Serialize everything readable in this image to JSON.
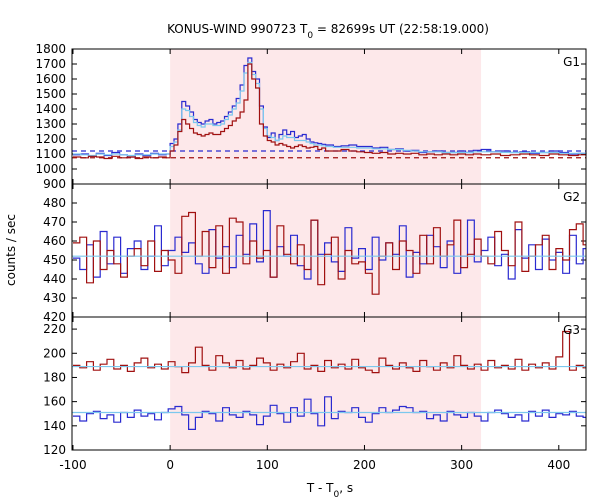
{
  "title": {
    "prefix": "KONUS-WIND 990723 T",
    "sub": "0",
    "suffix": " = 82699s UT (22:58:19.000)"
  },
  "ylabel": "counts / sec",
  "xlabel": {
    "prefix": "T - T",
    "sub": "0",
    "suffix": ", s"
  },
  "colors": {
    "red": "#a01010",
    "blue": "#2a2ad0",
    "light_blue": "#7cc8ee",
    "shade": "#fde8ea"
  },
  "chart_data": {
    "type": "line",
    "xlim": [
      -101,
      428
    ],
    "xticks": [
      -100,
      0,
      100,
      200,
      300,
      400
    ],
    "shaded_interval": [
      0,
      320
    ],
    "panels": [
      {
        "label": "G1",
        "ylim": [
          900,
          1800
        ],
        "yticks": [
          900,
          1000,
          1100,
          1200,
          1300,
          1400,
          1500,
          1600,
          1700,
          1800
        ],
        "x": [
          -100,
          -92,
          -84,
          -76,
          -68,
          -60,
          -52,
          -44,
          -36,
          -28,
          -20,
          -12,
          -4,
          0,
          4,
          8,
          12,
          16,
          20,
          24,
          28,
          32,
          36,
          40,
          44,
          48,
          52,
          56,
          60,
          64,
          68,
          72,
          76,
          80,
          84,
          88,
          92,
          96,
          100,
          104,
          108,
          112,
          116,
          120,
          124,
          128,
          132,
          136,
          140,
          144,
          148,
          152,
          156,
          160,
          168,
          176,
          184,
          192,
          200,
          208,
          216,
          224,
          232,
          240,
          248,
          256,
          264,
          272,
          280,
          288,
          296,
          304,
          312,
          320,
          330,
          340,
          350,
          360,
          370,
          380,
          390,
          400,
          410,
          420,
          428
        ],
        "series": [
          {
            "name": "",
            "color": "blue",
            "style": "step",
            "values": [
              1095,
              1100,
              1085,
              1105,
              1090,
              1110,
              1095,
              1080,
              1100,
              1090,
              1105,
              1095,
              1100,
              1170,
              1200,
              1300,
              1450,
              1420,
              1380,
              1330,
              1310,
              1300,
              1320,
              1330,
              1300,
              1310,
              1320,
              1350,
              1380,
              1420,
              1470,
              1560,
              1690,
              1740,
              1650,
              1600,
              1420,
              1280,
              1210,
              1240,
              1190,
              1230,
              1260,
              1230,
              1250,
              1210,
              1220,
              1230,
              1200,
              1180,
              1175,
              1170,
              1165,
              1160,
              1150,
              1155,
              1160,
              1150,
              1150,
              1140,
              1145,
              1130,
              1135,
              1120,
              1125,
              1110,
              1115,
              1120,
              1110,
              1110,
              1120,
              1110,
              1125,
              1130,
              1115,
              1120,
              1110,
              1115,
              1105,
              1110,
              1120,
              1110,
              1100,
              1105,
              1100
            ]
          },
          {
            "name": "",
            "color": "light_blue",
            "style": "step",
            "values": [
              1100,
              1095,
              1090,
              1100,
              1095,
              1100,
              1095,
              1090,
              1095,
              1095,
              1100,
              1100,
              1100,
              1150,
              1180,
              1260,
              1400,
              1390,
              1350,
              1310,
              1290,
              1280,
              1300,
              1300,
              1290,
              1290,
              1300,
              1330,
              1360,
              1400,
              1440,
              1520,
              1640,
              1710,
              1630,
              1570,
              1400,
              1270,
              1220,
              1210,
              1190,
              1200,
              1220,
              1210,
              1210,
              1190,
              1190,
              1190,
              1180,
              1170,
              1160,
              1160,
              1155,
              1150,
              1145,
              1145,
              1145,
              1140,
              1140,
              1135,
              1135,
              1130,
              1130,
              1125,
              1120,
              1115,
              1115,
              1115,
              1110,
              1110,
              1110,
              1110,
              1115,
              1115,
              1115,
              1110,
              1110,
              1110,
              1110,
              1110,
              1110,
              1105,
              1105,
              1105,
              1105
            ]
          },
          {
            "name": "",
            "color": "red",
            "style": "step",
            "values": [
              1080,
              1075,
              1085,
              1080,
              1070,
              1085,
              1075,
              1080,
              1070,
              1080,
              1075,
              1080,
              1075,
              1120,
              1160,
              1250,
              1330,
              1300,
              1270,
              1240,
              1230,
              1220,
              1230,
              1240,
              1230,
              1230,
              1250,
              1270,
              1290,
              1320,
              1340,
              1380,
              1460,
              1700,
              1600,
              1540,
              1300,
              1220,
              1190,
              1180,
              1160,
              1170,
              1160,
              1150,
              1140,
              1150,
              1160,
              1150,
              1140,
              1145,
              1150,
              1130,
              1140,
              1120,
              1120,
              1130,
              1120,
              1115,
              1110,
              1105,
              1110,
              1100,
              1105,
              1100,
              1105,
              1095,
              1100,
              1095,
              1100,
              1095,
              1100,
              1095,
              1100,
              1095,
              1100,
              1090,
              1095,
              1100,
              1095,
              1090,
              1100,
              1095,
              1090,
              1095,
              1090
            ]
          }
        ],
        "dashed": [
          {
            "color": "blue",
            "value": 1120
          },
          {
            "color": "red",
            "value": 1075
          }
        ]
      },
      {
        "label": "G2",
        "ylim": [
          420,
          490
        ],
        "yticks": [
          420,
          430,
          440,
          450,
          460,
          470,
          480
        ],
        "x": [
          -100,
          -93,
          -86,
          -79,
          -72,
          -65,
          -58,
          -51,
          -44,
          -37,
          -30,
          -23,
          -16,
          -9,
          -2,
          5,
          12,
          19,
          26,
          33,
          40,
          47,
          54,
          61,
          68,
          75,
          82,
          89,
          96,
          103,
          110,
          117,
          124,
          131,
          138,
          145,
          152,
          159,
          166,
          173,
          180,
          187,
          194,
          201,
          208,
          215,
          222,
          229,
          236,
          243,
          250,
          257,
          264,
          271,
          278,
          285,
          292,
          299,
          306,
          313,
          320,
          327,
          334,
          341,
          348,
          355,
          362,
          369,
          376,
          383,
          390,
          397,
          404,
          411,
          418,
          425
        ],
        "series": [
          {
            "name": "",
            "color": "blue",
            "style": "step",
            "values": [
              451,
              445,
              458,
              441,
              465,
              448,
              462,
              443,
              456,
              460,
              445,
              452,
              468,
              447,
              455,
              462,
              454,
              459,
              448,
              443,
              466,
              451,
              457,
              446,
              463,
              453,
              469,
              449,
              476,
              441,
              457,
              452,
              463,
              447,
              440,
              471,
              453,
              459,
              449,
              444,
              467,
              451,
              456,
              445,
              462,
              450,
              459,
              453,
              468,
              441,
              454,
              448,
              463,
              457,
              446,
              460,
              443,
              452,
              471,
              449,
              455,
              462,
              447,
              453,
              440,
              466,
              451,
              458,
              445,
              461,
              450,
              454,
              443,
              463,
              448,
              456
            ]
          },
          {
            "name": "",
            "color": "red",
            "style": "step",
            "values": [
              459,
              462,
              438,
              460,
              445,
              455,
              448,
              441,
              452,
              456,
              447,
              460,
              444,
              455,
              450,
              443,
              473,
              475,
              452,
              465,
              446,
              468,
              443,
              472,
              470,
              448,
              460,
              451,
              455,
              441,
              468,
              453,
              448,
              458,
              445,
              471,
              437,
              453,
              462,
              440,
              455,
              448,
              449,
              443,
              432,
              452,
              459,
              445,
              460,
              455,
              443,
              463,
              448,
              467,
              452,
              458,
              471,
              446,
              453,
              461,
              452,
              448,
              465,
              455,
              447,
              470,
              444,
              452,
              458,
              463,
              445,
              456,
              450,
              466,
              469,
              458
            ]
          },
          {
            "name": "",
            "color": "light_blue",
            "style": "flat",
            "value": 452
          }
        ]
      },
      {
        "label": "G3",
        "ylim": [
          120,
          230
        ],
        "yticks": [
          120,
          140,
          160,
          180,
          200,
          220
        ],
        "x": [
          -100,
          -93,
          -86,
          -79,
          -72,
          -65,
          -58,
          -51,
          -44,
          -37,
          -30,
          -23,
          -16,
          -9,
          -2,
          5,
          12,
          19,
          26,
          33,
          40,
          47,
          54,
          61,
          68,
          75,
          82,
          89,
          96,
          103,
          110,
          117,
          124,
          131,
          138,
          145,
          152,
          159,
          166,
          173,
          180,
          187,
          194,
          201,
          208,
          215,
          222,
          229,
          236,
          243,
          250,
          257,
          264,
          271,
          278,
          285,
          292,
          299,
          306,
          313,
          320,
          327,
          334,
          341,
          348,
          355,
          362,
          369,
          376,
          383,
          390,
          397,
          404,
          411,
          418,
          425
        ],
        "series": [
          {
            "name": "",
            "color": "red",
            "style": "step",
            "values": [
              190,
              188,
              193,
              186,
              191,
              195,
              187,
              190,
              185,
              192,
              196,
              188,
              191,
              187,
              193,
              189,
              184,
              192,
              205,
              190,
              186,
              198,
              192,
              188,
              194,
              187,
              190,
              196,
              192,
              186,
              191,
              188,
              193,
              200,
              187,
              190,
              185,
              194,
              188,
              191,
              187,
              195,
              188,
              186,
              184,
              196,
              190,
              187,
              192,
              188,
              185,
              194,
              189,
              186,
              192,
              188,
              198,
              190,
              187,
              191,
              186,
              194,
              188,
              190,
              187,
              195,
              186,
              191,
              188,
              192,
              187,
              197,
              218,
              186,
              190,
              188
            ]
          },
          {
            "name": "",
            "color": "blue",
            "style": "step",
            "values": [
              148,
              144,
              150,
              152,
              146,
              149,
              143,
              151,
              147,
              153,
              148,
              150,
              145,
              151,
              154,
              156,
              149,
              137,
              147,
              152,
              150,
              144,
              155,
              149,
              147,
              152,
              149,
              141,
              148,
              157,
              150,
              143,
              155,
              148,
              162,
              150,
              140,
              164,
              146,
              152,
              151,
              155,
              147,
              143,
              150,
              155,
              151,
              153,
              156,
              155,
              151,
              152,
              146,
              149,
              144,
              152,
              149,
              147,
              151,
              148,
              144,
              151,
              153,
              150,
              147,
              149,
              144,
              152,
              148,
              153,
              147,
              150,
              149,
              152,
              148,
              147
            ]
          },
          {
            "name": "",
            "color": "light_blue",
            "style": "flat",
            "value": 151
          },
          {
            "name": "",
            "color": "light_blue",
            "style": "flat",
            "value": 189
          }
        ]
      }
    ]
  }
}
